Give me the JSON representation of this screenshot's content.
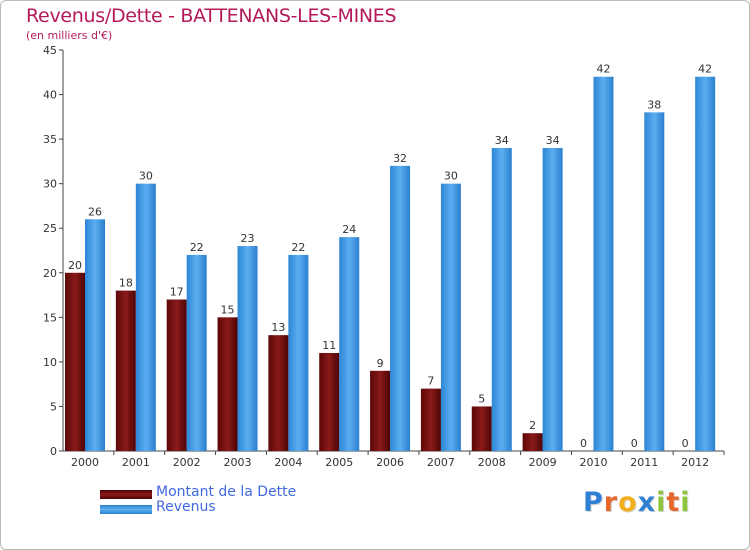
{
  "chart_data": {
    "type": "bar",
    "title": "Revenus/Dette - BATTENANS-LES-MINES",
    "subtitle": "(en milliers d'€)",
    "categories": [
      "2000",
      "2001",
      "2002",
      "2003",
      "2004",
      "2005",
      "2006",
      "2007",
      "2008",
      "2009",
      "2010",
      "2011",
      "2012"
    ],
    "series": [
      {
        "name": "Montant de la Dette",
        "color": "#7a0c0c",
        "values": [
          20,
          18,
          17,
          15,
          13,
          11,
          9,
          7,
          5,
          2,
          0,
          0,
          0
        ]
      },
      {
        "name": "Revenus",
        "color": "#3f9be6",
        "values": [
          26,
          30,
          22,
          23,
          22,
          24,
          32,
          30,
          34,
          34,
          42,
          38,
          42
        ]
      }
    ],
    "ylim": [
      0,
      45
    ],
    "yticks": [
      0,
      5,
      10,
      15,
      20,
      25,
      30,
      35,
      40,
      45
    ],
    "grid": false,
    "legend": "bottom-left"
  },
  "logo": {
    "letters": [
      "P",
      "r",
      "o",
      "x",
      "i",
      "t",
      "i"
    ],
    "colors": [
      "#2f7fd3",
      "#e8672a",
      "#f2b01e",
      "#2f7fd3",
      "#8cc63f",
      "#e8672a",
      "#8cc63f"
    ]
  }
}
